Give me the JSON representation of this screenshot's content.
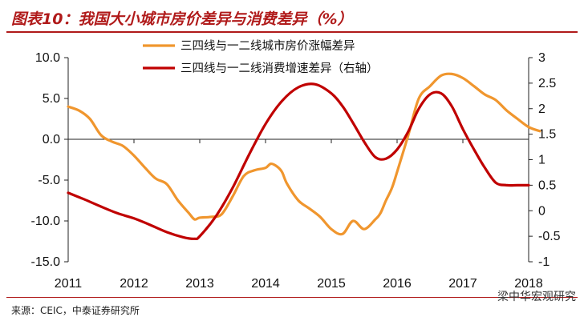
{
  "title": "图表10：我国大小城市房价差异与消费差异（%）",
  "source": "来源：CEIC，中泰证券研究所",
  "watermark": "梁中华宏观研究",
  "colors": {
    "series1": "#f0962e",
    "series2": "#c00000",
    "accent": "#b01a1a"
  },
  "chart_data": {
    "type": "line",
    "title": "",
    "xlabel": "",
    "ylabel": "",
    "x_ticks": [
      "2011",
      "2012",
      "2013",
      "2014",
      "2015",
      "2016",
      "2017",
      "2018"
    ],
    "y_left": {
      "min": -15,
      "max": 10,
      "ticks": [
        "10.0",
        "5.0",
        "0.0",
        "-5.0",
        "-10.0",
        "-15.0"
      ]
    },
    "y_right": {
      "min": -1,
      "max": 3,
      "ticks": [
        "3",
        "2.5",
        "2",
        "1.5",
        "1",
        "0.5",
        "0",
        "-0.5",
        "-1"
      ]
    },
    "grid": false,
    "legend_position": "top-center",
    "series": [
      {
        "name": "三四线与一二线城市房价涨幅差异",
        "axis": "left",
        "x": [
          2011.0,
          2011.17,
          2011.33,
          2011.5,
          2011.67,
          2011.83,
          2012.0,
          2012.17,
          2012.33,
          2012.5,
          2012.67,
          2012.83,
          2012.92,
          2013.0,
          2013.17,
          2013.33,
          2013.5,
          2013.67,
          2013.83,
          2014.0,
          2014.08,
          2014.17,
          2014.25,
          2014.33,
          2014.5,
          2014.67,
          2014.83,
          2015.0,
          2015.17,
          2015.33,
          2015.5,
          2015.67,
          2015.75,
          2015.83,
          2015.92,
          2016.0,
          2016.17,
          2016.33,
          2016.5,
          2016.67,
          2016.83,
          2017.0,
          2017.17,
          2017.33,
          2017.5,
          2017.67,
          2017.83,
          2018.0,
          2018.17
        ],
        "values": [
          4.0,
          3.5,
          2.5,
          0.5,
          -0.3,
          -0.8,
          -2.0,
          -3.5,
          -4.8,
          -5.5,
          -7.5,
          -9.0,
          -9.8,
          -9.6,
          -9.5,
          -9.2,
          -7.0,
          -4.5,
          -3.8,
          -3.5,
          -3.0,
          -3.3,
          -4.0,
          -5.5,
          -7.5,
          -8.5,
          -9.5,
          -11.0,
          -11.6,
          -10.0,
          -11.0,
          -9.8,
          -9.0,
          -7.5,
          -6.0,
          -4.0,
          0.5,
          5.0,
          6.5,
          7.8,
          8.0,
          7.5,
          6.5,
          5.5,
          4.8,
          3.5,
          2.5,
          1.5,
          1.0
        ]
      },
      {
        "name": "三四线与一二线消费增速差异（右轴）",
        "axis": "right",
        "x": [
          2011.0,
          2011.25,
          2011.5,
          2011.75,
          2012.0,
          2012.25,
          2012.5,
          2012.75,
          2012.92,
          2013.0,
          2013.25,
          2013.5,
          2013.75,
          2014.0,
          2014.25,
          2014.5,
          2014.75,
          2015.0,
          2015.17,
          2015.33,
          2015.5,
          2015.67,
          2015.83,
          2016.0,
          2016.17,
          2016.33,
          2016.5,
          2016.67,
          2016.83,
          2017.0,
          2017.17,
          2017.33,
          2017.5,
          2017.67,
          2017.83,
          2018.0
        ],
        "values": [
          0.35,
          0.22,
          0.08,
          -0.05,
          -0.15,
          -0.28,
          -0.42,
          -0.52,
          -0.55,
          -0.5,
          -0.1,
          0.45,
          1.1,
          1.7,
          2.15,
          2.42,
          2.48,
          2.3,
          2.05,
          1.72,
          1.35,
          1.05,
          1.02,
          1.2,
          1.55,
          2.0,
          2.28,
          2.3,
          2.05,
          1.6,
          1.2,
          0.85,
          0.55,
          0.5,
          0.5,
          0.5
        ]
      }
    ]
  }
}
